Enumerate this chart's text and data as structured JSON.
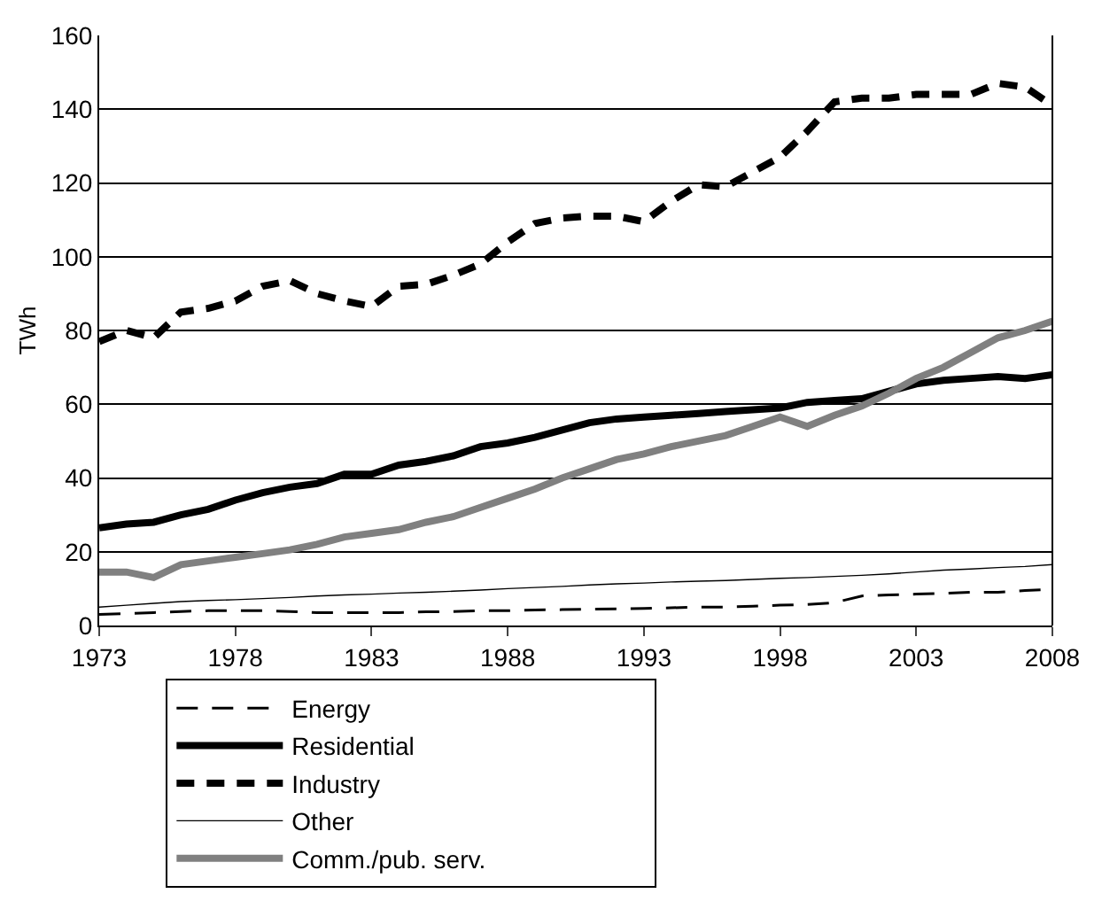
{
  "chart_data": {
    "type": "line",
    "ylabel": "TWh",
    "x": [
      1973,
      1974,
      1975,
      1976,
      1977,
      1978,
      1979,
      1980,
      1981,
      1982,
      1983,
      1984,
      1985,
      1986,
      1987,
      1988,
      1989,
      1990,
      1991,
      1992,
      1993,
      1994,
      1995,
      1996,
      1997,
      1998,
      1999,
      2000,
      2001,
      2002,
      2003,
      2004,
      2005,
      2006,
      2007,
      2008
    ],
    "xlim": [
      1973,
      2008
    ],
    "xticks": [
      1973,
      1978,
      1983,
      1988,
      1993,
      1998,
      2003,
      2008
    ],
    "ylim": [
      0,
      160
    ],
    "yticks": [
      0,
      20,
      40,
      60,
      80,
      100,
      120,
      140,
      160
    ],
    "grid": "y",
    "legend": "bottom",
    "marker": "none",
    "series": [
      {
        "name": "Energy",
        "color": "#000000",
        "line_style": "dashed",
        "values": [
          3,
          3.2,
          3.5,
          3.8,
          4,
          4,
          4,
          3.8,
          3.5,
          3.5,
          3.5,
          3.5,
          3.7,
          3.8,
          4,
          4,
          4.2,
          4.3,
          4.4,
          4.5,
          4.6,
          4.8,
          5,
          5,
          5.2,
          5.5,
          5.7,
          6.2,
          8,
          8.3,
          8.5,
          8.7,
          9,
          9,
          9.5,
          9.8
        ]
      },
      {
        "name": "Residential",
        "color": "#000000",
        "line_style": "solid",
        "values": [
          26.5,
          27.5,
          28,
          30,
          31.5,
          34,
          36,
          37.5,
          38.5,
          41,
          41,
          43.5,
          44.5,
          46,
          48.5,
          49.5,
          51,
          53,
          55,
          56,
          56.5,
          57,
          57.5,
          58,
          58.5,
          59,
          60.5,
          61,
          61.5,
          63.5,
          65.5,
          66.5,
          67,
          67.5,
          67,
          68
        ]
      },
      {
        "name": "Industry",
        "color": "#000000",
        "line_style": "dashed",
        "values": [
          77,
          80,
          78,
          85,
          86,
          88,
          92,
          93.5,
          90,
          88,
          86.5,
          92,
          92.5,
          95,
          98,
          104,
          109,
          110.5,
          111,
          111,
          109.5,
          115,
          119.5,
          119,
          123,
          127,
          134,
          142,
          143,
          143,
          144,
          144,
          144,
          147,
          146,
          141
        ]
      },
      {
        "name": "Other",
        "color": "#000000",
        "line_style": "solid",
        "values": [
          5,
          5.5,
          6,
          6.5,
          6.8,
          7,
          7.3,
          7.6,
          8,
          8.3,
          8.5,
          8.8,
          9,
          9.3,
          9.6,
          10,
          10.3,
          10.6,
          11,
          11.3,
          11.5,
          11.8,
          12,
          12.2,
          12.5,
          12.8,
          13,
          13.3,
          13.6,
          14,
          14.5,
          15,
          15.3,
          15.7,
          16,
          16.5
        ]
      },
      {
        "name": "Comm./pub. serv.",
        "color": "#808080",
        "line_style": "solid",
        "values": [
          14.5,
          14.5,
          13,
          16.5,
          17.5,
          18.5,
          19.5,
          20.5,
          22,
          24,
          25,
          26,
          28,
          29.5,
          32,
          34.5,
          37,
          40,
          42.5,
          45,
          46.5,
          48.5,
          50,
          51.5,
          54,
          56.5,
          54,
          57,
          59.5,
          63,
          67,
          70,
          74,
          78,
          80,
          82.5
        ]
      }
    ]
  }
}
